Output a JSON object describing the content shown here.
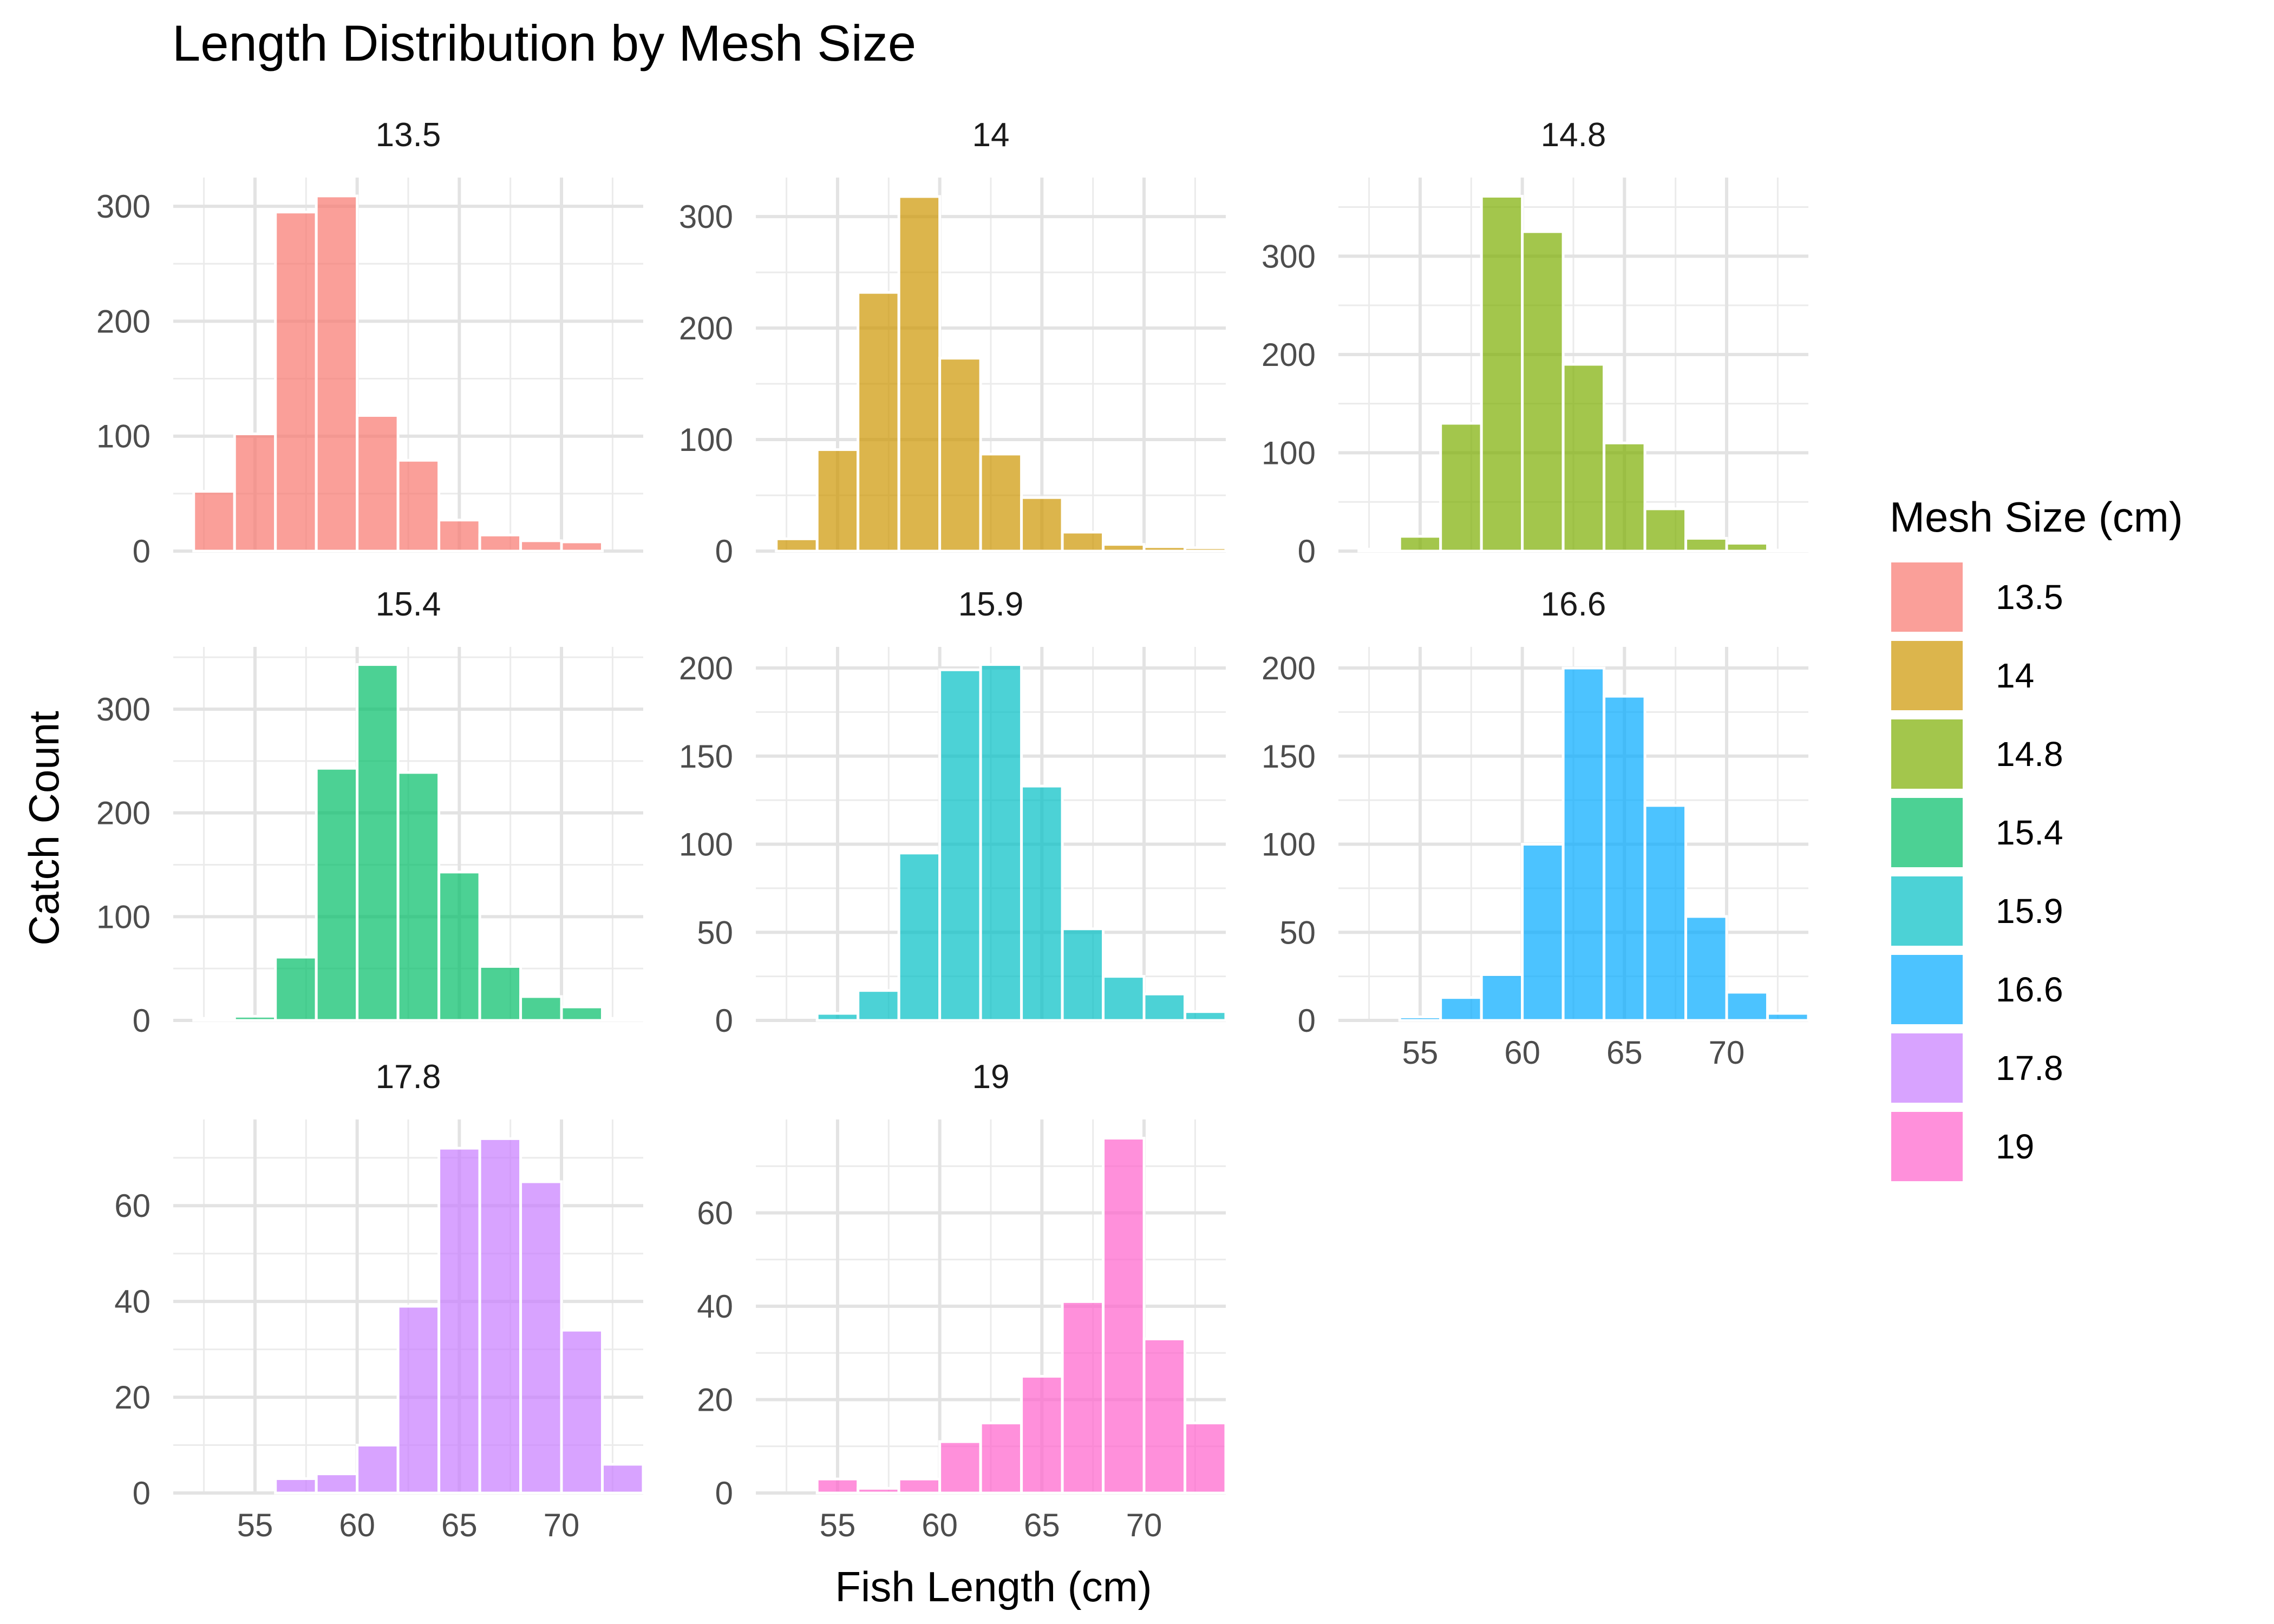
{
  "title": "Length Distribution by Mesh Size",
  "xlabel": "Fish Length (cm)",
  "ylabel": "Catch Count",
  "legend_title": "Mesh Size (cm)",
  "chart_data": {
    "type": "bar",
    "title": "Length Distribution by Mesh Size",
    "xlabel": "Fish Length (cm)",
    "ylabel": "Catch Count",
    "xlim": [
      51,
      74
    ],
    "x_ticks": [
      55,
      60,
      65,
      70
    ],
    "bin_centers": [
      53,
      55,
      57,
      59,
      61,
      63,
      65,
      67,
      69,
      71,
      73
    ],
    "legend_position": "right",
    "grid": true,
    "panels": [
      {
        "name": "13.5",
        "color": "#F8766D",
        "y_ticks": [
          0,
          100,
          200,
          300
        ],
        "ylim": [
          0,
          325
        ],
        "values": [
          52,
          102,
          295,
          309,
          118,
          79,
          27,
          14,
          9,
          8,
          0
        ]
      },
      {
        "name": "14",
        "color": "#CD9600",
        "y_ticks": [
          0,
          100,
          200,
          300
        ],
        "ylim": [
          0,
          335
        ],
        "values": [
          11,
          91,
          232,
          318,
          173,
          87,
          48,
          17,
          6,
          4,
          3
        ]
      },
      {
        "name": "14.8",
        "color": "#7CAE00",
        "y_ticks": [
          0,
          100,
          200,
          300
        ],
        "ylim": [
          0,
          380
        ],
        "values": [
          2,
          15,
          130,
          361,
          325,
          190,
          110,
          43,
          13,
          8,
          1
        ]
      },
      {
        "name": "15.4",
        "color": "#00BE67",
        "y_ticks": [
          0,
          100,
          200,
          300
        ],
        "ylim": [
          0,
          360
        ],
        "values": [
          2,
          4,
          61,
          243,
          343,
          239,
          143,
          52,
          23,
          13,
          2
        ]
      },
      {
        "name": "15.9",
        "color": "#00BFC4",
        "y_ticks": [
          0,
          50,
          100,
          150,
          200
        ],
        "ylim": [
          0,
          212
        ],
        "values": [
          0,
          4,
          17,
          95,
          199,
          202,
          133,
          52,
          25,
          15,
          5
        ]
      },
      {
        "name": "16.6",
        "color": "#00A9FF",
        "y_ticks": [
          0,
          50,
          100,
          150,
          200
        ],
        "ylim": [
          0,
          212
        ],
        "values": [
          0,
          2,
          13,
          26,
          100,
          200,
          184,
          122,
          59,
          16,
          4
        ]
      },
      {
        "name": "17.8",
        "color": "#C77CFF",
        "y_ticks": [
          0,
          20,
          40,
          60
        ],
        "ylim": [
          0,
          78
        ],
        "values": [
          0,
          0,
          3,
          4,
          10,
          39,
          72,
          74,
          65,
          34,
          6
        ]
      },
      {
        "name": "19",
        "color": "#FF61CC",
        "y_ticks": [
          0,
          20,
          40,
          60
        ],
        "ylim": [
          0,
          80
        ],
        "values": [
          0,
          3,
          1,
          3,
          11,
          15,
          25,
          41,
          76,
          33,
          15
        ]
      }
    ]
  }
}
